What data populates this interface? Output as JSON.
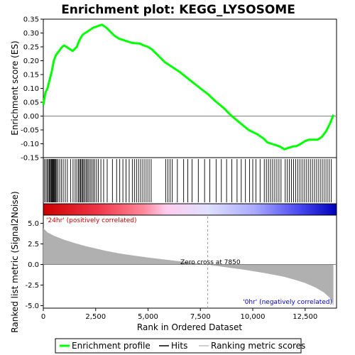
{
  "chart_data": {
    "type": "line",
    "title": "Enrichment plot: KEGG_LYSOSOME",
    "xlabel": "Rank in Ordered Dataset",
    "ylabel_top": "Enrichment score (ES)",
    "ylabel_bottom": "Ranked list metric (Signal2Noise)",
    "x_ticks": [
      0,
      2500,
      5000,
      7500,
      10000,
      12500
    ],
    "x_tick_labels": [
      "0",
      "2,500",
      "5,000",
      "7,500",
      "10,000",
      "12,500"
    ],
    "xlim": [
      0,
      14000
    ],
    "es_ylim": [
      -0.15,
      0.35
    ],
    "es_ticks": [
      -0.15,
      -0.1,
      -0.05,
      0.0,
      0.05,
      0.1,
      0.15,
      0.2,
      0.25,
      0.3,
      0.35
    ],
    "es_tick_labels": [
      "-0.15",
      "-0.10",
      "-0.05",
      "0.00",
      "0.05",
      "0.10",
      "0.15",
      "0.20",
      "0.25",
      "0.30",
      "0.35"
    ],
    "metric_ylim": [
      -5.3,
      6.0
    ],
    "metric_ticks": [
      -5.0,
      -2.5,
      0.0,
      2.5,
      5.0
    ],
    "metric_tick_labels": [
      "-5.0",
      "-2.5",
      "0.0",
      "2.5",
      "5.0"
    ],
    "series": [
      {
        "name": "Enrichment profile",
        "color": "#00ff00",
        "x": [
          0,
          100,
          200,
          300,
          400,
          500,
          600,
          700,
          800,
          900,
          1000,
          1200,
          1400,
          1600,
          1700,
          1800,
          1900,
          2000,
          2100,
          2200,
          2300,
          2400,
          2500,
          2600,
          2700,
          2800,
          2900,
          3000,
          3200,
          3400,
          3600,
          3800,
          4000,
          4200,
          4400,
          4600,
          4800,
          5000,
          5200,
          5400,
          5600,
          5800,
          6000,
          6200,
          6500,
          7000,
          7500,
          7850,
          8200,
          8600,
          9000,
          9400,
          9800,
          10200,
          10500,
          10700,
          10900,
          11100,
          11300,
          11500,
          11700,
          11900,
          12100,
          12300,
          12500,
          12700,
          12900,
          13100,
          13300,
          13500,
          13700,
          13850
        ],
        "values": [
          0.04,
          0.085,
          0.1,
          0.13,
          0.16,
          0.2,
          0.22,
          0.23,
          0.24,
          0.25,
          0.255,
          0.245,
          0.235,
          0.25,
          0.27,
          0.285,
          0.295,
          0.3,
          0.305,
          0.31,
          0.315,
          0.32,
          0.322,
          0.325,
          0.328,
          0.33,
          0.325,
          0.32,
          0.305,
          0.29,
          0.28,
          0.275,
          0.27,
          0.265,
          0.263,
          0.262,
          0.255,
          0.25,
          0.24,
          0.225,
          0.21,
          0.195,
          0.185,
          0.175,
          0.16,
          0.13,
          0.1,
          0.08,
          0.055,
          0.03,
          0.0,
          -0.025,
          -0.05,
          -0.065,
          -0.08,
          -0.095,
          -0.1,
          -0.105,
          -0.11,
          -0.12,
          -0.115,
          -0.11,
          -0.108,
          -0.1,
          -0.09,
          -0.085,
          -0.085,
          -0.085,
          -0.075,
          -0.055,
          -0.025,
          0.005
        ]
      }
    ],
    "hits_label": "Hits",
    "metric_label": "Ranking metric scores",
    "annotations": {
      "positive": "'24hr' (positively correlated)",
      "negative": "'0hr' (negatively correlated)",
      "zero_cross": "Zero cross at 7850",
      "zero_cross_x": 7850
    },
    "hit_positions": [
      60,
      130,
      190,
      240,
      290,
      330,
      370,
      400,
      430,
      460,
      490,
      520,
      560,
      600,
      640,
      700,
      780,
      860,
      950,
      1050,
      1150,
      1300,
      1420,
      1520,
      1600,
      1680,
      1730,
      1780,
      1830,
      1880,
      1930,
      1990,
      2050,
      2110,
      2170,
      2240,
      2310,
      2380,
      2450,
      2540,
      2630,
      2750,
      2880,
      3050,
      3300,
      3500,
      3650,
      3800,
      3950,
      4100,
      4250,
      4350,
      4450,
      4550,
      4650,
      4750,
      4850,
      4950,
      5050,
      5150,
      5850,
      5950,
      6050,
      6150,
      6400,
      6700,
      6900,
      7100,
      7400,
      7700,
      7950,
      8250,
      8500,
      8750,
      9000,
      9250,
      9450,
      9650,
      9850,
      10000,
      10150,
      10350,
      10550,
      10650,
      10750,
      10850,
      10950,
      11050,
      11150,
      11250,
      11350,
      11550,
      11650,
      11750,
      11850,
      11950,
      12050,
      12150,
      12250,
      12350,
      12450,
      12550,
      12650,
      12750,
      12850,
      12950,
      13050,
      13150,
      13250,
      13350,
      13450,
      13550,
      13650,
      13750
    ],
    "metric_profile": {
      "x": [
        0,
        200,
        500,
        1000,
        1500,
        2000,
        2500,
        3000,
        3500,
        4000,
        5000,
        6000,
        7000,
        7850,
        8500,
        9500,
        10500,
        11500,
        12000,
        12500,
        13000,
        13400,
        13700,
        13850
      ],
      "values": [
        4.4,
        3.9,
        3.5,
        3.0,
        2.6,
        2.25,
        1.95,
        1.65,
        1.4,
        1.2,
        0.85,
        0.55,
        0.25,
        0.0,
        -0.25,
        -0.6,
        -1.0,
        -1.5,
        -1.85,
        -2.25,
        -2.8,
        -3.4,
        -4.1,
        -5.0
      ]
    }
  }
}
